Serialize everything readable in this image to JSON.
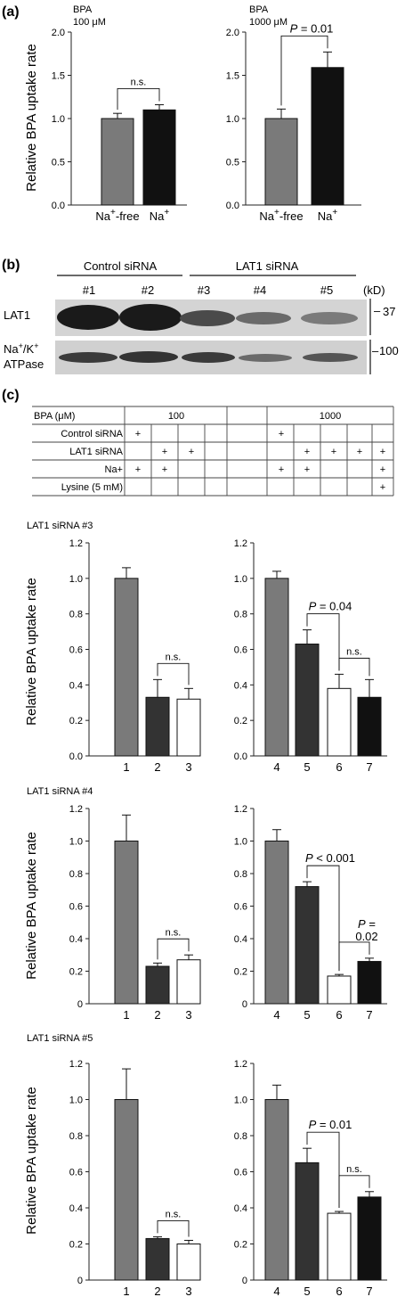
{
  "panel_a": {
    "label": "(a)",
    "ylabel": "Relative BPA uptake rate",
    "charts": [
      {
        "title_line1": "BPA",
        "title_line2": "100 μM"
      },
      {
        "title_line1": "BPA",
        "title_line2": "1000 μM"
      }
    ]
  },
  "panel_b": {
    "label": "(b)",
    "group1": "Control siRNA",
    "group2": "LAT1 siRNA",
    "lanes": [
      "#1",
      "#2",
      "#3",
      "#4",
      "#5"
    ],
    "unit": "(kD)",
    "row1_label": "LAT1",
    "row2_label_line1": "Na+/K+",
    "row2_label_line2": "ATPase",
    "marker1": "37",
    "marker2": "100"
  },
  "panel_c": {
    "label": "(c)",
    "table": {
      "rows": [
        "BPA (μM)",
        "Control siRNA",
        "LAT1 siRNA",
        "Na+",
        "Lysine (5 mM)"
      ],
      "bpa_low": "100",
      "bpa_high": "1000",
      "plus": "+"
    },
    "ylabel": "Relative BPA uptake rate",
    "sections": [
      "LAT1 siRNA #3",
      "LAT1 siRNA #4",
      "LAT1 siRNA #5"
    ]
  },
  "colors": {
    "gray": "#7a7a7a",
    "black": "#111111",
    "dark": "#333333",
    "white": "#ffffff"
  },
  "chart_data": [
    {
      "type": "bar",
      "panel": "a-left",
      "categories": [
        "Na+-free",
        "Na+"
      ],
      "values": [
        1.0,
        1.1
      ],
      "errors": [
        0.06,
        0.06
      ],
      "ylim": [
        0,
        2.0
      ],
      "yticks": [
        "0.0",
        "0.5",
        "1.0",
        "1.5",
        "2.0"
      ],
      "annotations": [
        {
          "text": "n.s.",
          "between": [
            0,
            1
          ]
        }
      ]
    },
    {
      "type": "bar",
      "panel": "a-right",
      "categories": [
        "Na+-free",
        "Na+"
      ],
      "values": [
        1.0,
        1.59
      ],
      "errors": [
        0.11,
        0.18
      ],
      "ylim": [
        0,
        2.0
      ],
      "yticks": [
        "0.0",
        "0.5",
        "1.0",
        "1.5",
        "2.0"
      ],
      "annotations": [
        {
          "text": "P = 0.01",
          "between": [
            0,
            1
          ]
        }
      ]
    },
    {
      "type": "bar",
      "panel": "c-#3-left",
      "categories": [
        "1",
        "2",
        "3"
      ],
      "values": [
        1.0,
        0.33,
        0.32
      ],
      "errors": [
        0.06,
        0.1,
        0.06
      ],
      "ylim": [
        0,
        1.2
      ],
      "yticks": [
        "0.0",
        "0.2",
        "0.4",
        "0.6",
        "0.8",
        "1.0",
        "1.2"
      ],
      "annotations": [
        {
          "text": "n.s.",
          "between": [
            1,
            2
          ]
        }
      ]
    },
    {
      "type": "bar",
      "panel": "c-#3-right",
      "categories": [
        "4",
        "5",
        "6",
        "7"
      ],
      "values": [
        1.0,
        0.63,
        0.38,
        0.33
      ],
      "errors": [
        0.04,
        0.08,
        0.08,
        0.1
      ],
      "ylim": [
        0,
        1.2
      ],
      "yticks": [
        "0.0",
        "0.2",
        "0.4",
        "0.6",
        "0.8",
        "1.0",
        "1.2"
      ],
      "annotations": [
        {
          "text": "P = 0.04",
          "between": [
            1,
            2
          ]
        },
        {
          "text": "n.s.",
          "between": [
            2,
            3
          ]
        }
      ]
    },
    {
      "type": "bar",
      "panel": "c-#4-left",
      "categories": [
        "1",
        "2",
        "3"
      ],
      "values": [
        1.0,
        0.23,
        0.27
      ],
      "errors": [
        0.16,
        0.02,
        0.03
      ],
      "ylim": [
        0,
        1.2
      ],
      "yticks": [
        "0",
        "0.2",
        "0.4",
        "0.6",
        "0.8",
        "1.0",
        "1.2"
      ],
      "annotations": [
        {
          "text": "n.s.",
          "between": [
            1,
            2
          ]
        }
      ]
    },
    {
      "type": "bar",
      "panel": "c-#4-right",
      "categories": [
        "4",
        "5",
        "6",
        "7"
      ],
      "values": [
        1.0,
        0.72,
        0.17,
        0.26
      ],
      "errors": [
        0.07,
        0.03,
        0.01,
        0.02
      ],
      "ylim": [
        0,
        1.2
      ],
      "yticks": [
        "0",
        "0.2",
        "0.4",
        "0.6",
        "0.8",
        "1.0",
        "1.2"
      ],
      "annotations": [
        {
          "text": "P < 0.001",
          "between": [
            1,
            2
          ]
        },
        {
          "text": "P = 0.02",
          "between": [
            2,
            3
          ]
        }
      ]
    },
    {
      "type": "bar",
      "panel": "c-#5-left",
      "categories": [
        "1",
        "2",
        "3"
      ],
      "values": [
        1.0,
        0.23,
        0.2
      ],
      "errors": [
        0.17,
        0.01,
        0.02
      ],
      "ylim": [
        0,
        1.2
      ],
      "yticks": [
        "0",
        "0.2",
        "0.4",
        "0.6",
        "0.8",
        "1.0",
        "1.2"
      ],
      "annotations": [
        {
          "text": "n.s.",
          "between": [
            1,
            2
          ]
        }
      ]
    },
    {
      "type": "bar",
      "panel": "c-#5-right",
      "categories": [
        "4",
        "5",
        "6",
        "7"
      ],
      "values": [
        1.0,
        0.65,
        0.37,
        0.46
      ],
      "errors": [
        0.08,
        0.08,
        0.01,
        0.03
      ],
      "ylim": [
        0,
        1.2
      ],
      "yticks": [
        "0",
        "0.2",
        "0.4",
        "0.6",
        "0.8",
        "1.0",
        "1.2"
      ],
      "annotations": [
        {
          "text": "P = 0.01",
          "between": [
            1,
            2
          ]
        },
        {
          "text": "n.s.",
          "between": [
            2,
            3
          ]
        }
      ]
    }
  ]
}
